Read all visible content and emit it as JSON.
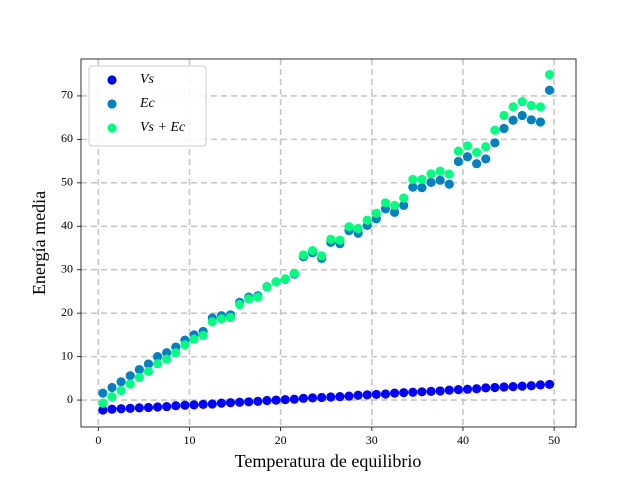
{
  "chart_data": {
    "type": "scatter",
    "x_label": "Temperatura de equilibrio",
    "y_label": "Energía media",
    "x": [
      0.5,
      1.5,
      2.5,
      3.5,
      4.5,
      5.5,
      6.5,
      7.5,
      8.5,
      9.5,
      10.5,
      11.5,
      12.5,
      13.5,
      14.5,
      15.5,
      16.5,
      17.5,
      18.5,
      19.5,
      20.5,
      21.5,
      22.5,
      23.5,
      24.5,
      25.5,
      26.5,
      27.5,
      28.5,
      29.5,
      30.5,
      31.5,
      32.5,
      33.5,
      34.5,
      35.5,
      36.5,
      37.5,
      38.5,
      39.5,
      40.5,
      41.5,
      42.5,
      43.5,
      44.5,
      45.5,
      46.5,
      47.5,
      48.5,
      49.5
    ],
    "series": [
      {
        "name": "Vs",
        "color": "#0000ff",
        "values": [
          -2.3,
          -2.1,
          -2.0,
          -1.9,
          -1.8,
          -1.7,
          -1.6,
          -1.5,
          -1.3,
          -1.2,
          -1.1,
          -1.0,
          -0.9,
          -0.7,
          -0.6,
          -0.5,
          -0.4,
          -0.3,
          -0.1,
          0.0,
          0.1,
          0.2,
          0.4,
          0.5,
          0.6,
          0.7,
          0.8,
          0.9,
          1.1,
          1.2,
          1.3,
          1.4,
          1.6,
          1.7,
          1.8,
          1.9,
          2.0,
          2.1,
          2.3,
          2.4,
          2.5,
          2.6,
          2.8,
          2.9,
          3.0,
          3.1,
          3.2,
          3.3,
          3.5,
          3.6
        ]
      },
      {
        "name": "Ec",
        "color": "#0080bf",
        "values": [
          1.6,
          2.9,
          4.2,
          5.6,
          7.0,
          8.3,
          10.0,
          10.9,
          12.2,
          13.8,
          15.0,
          15.8,
          18.9,
          19.4,
          19.6,
          22.5,
          23.7,
          24.0,
          26.1,
          27.2,
          27.8,
          29.0,
          33.0,
          33.9,
          32.6,
          36.3,
          36.0,
          39.0,
          38.4,
          40.2,
          41.7,
          44.0,
          43.2,
          44.8,
          49.0,
          48.9,
          50.1,
          50.6,
          49.7,
          54.9,
          56.0,
          54.4,
          55.5,
          59.2,
          62.5,
          64.4,
          65.5,
          64.5,
          64.0,
          71.3
        ]
      },
      {
        "name": "Vs + Ec",
        "color": "#00ff80",
        "values": [
          -0.7,
          0.8,
          2.2,
          3.7,
          5.2,
          6.6,
          8.4,
          9.4,
          10.9,
          12.7,
          14.0,
          14.9,
          18.0,
          18.7,
          19.0,
          22.0,
          23.3,
          23.7,
          26.0,
          27.2,
          27.9,
          29.2,
          33.4,
          34.4,
          33.2,
          37.0,
          36.8,
          39.9,
          39.5,
          41.4,
          43.0,
          45.4,
          44.8,
          46.5,
          50.8,
          50.8,
          52.1,
          52.7,
          52.0,
          57.3,
          58.5,
          57.0,
          58.3,
          62.1,
          65.5,
          67.5,
          68.7,
          67.8,
          67.5,
          74.9
        ]
      }
    ],
    "xlim": [
      -1.9,
      52.4
    ],
    "ylim": [
      -6.2,
      78.5
    ],
    "xticks": [
      0,
      10,
      20,
      30,
      40,
      50
    ],
    "yticks": [
      0,
      10,
      20,
      30,
      40,
      50,
      60,
      70
    ],
    "grid": true,
    "legend": "upper left"
  }
}
